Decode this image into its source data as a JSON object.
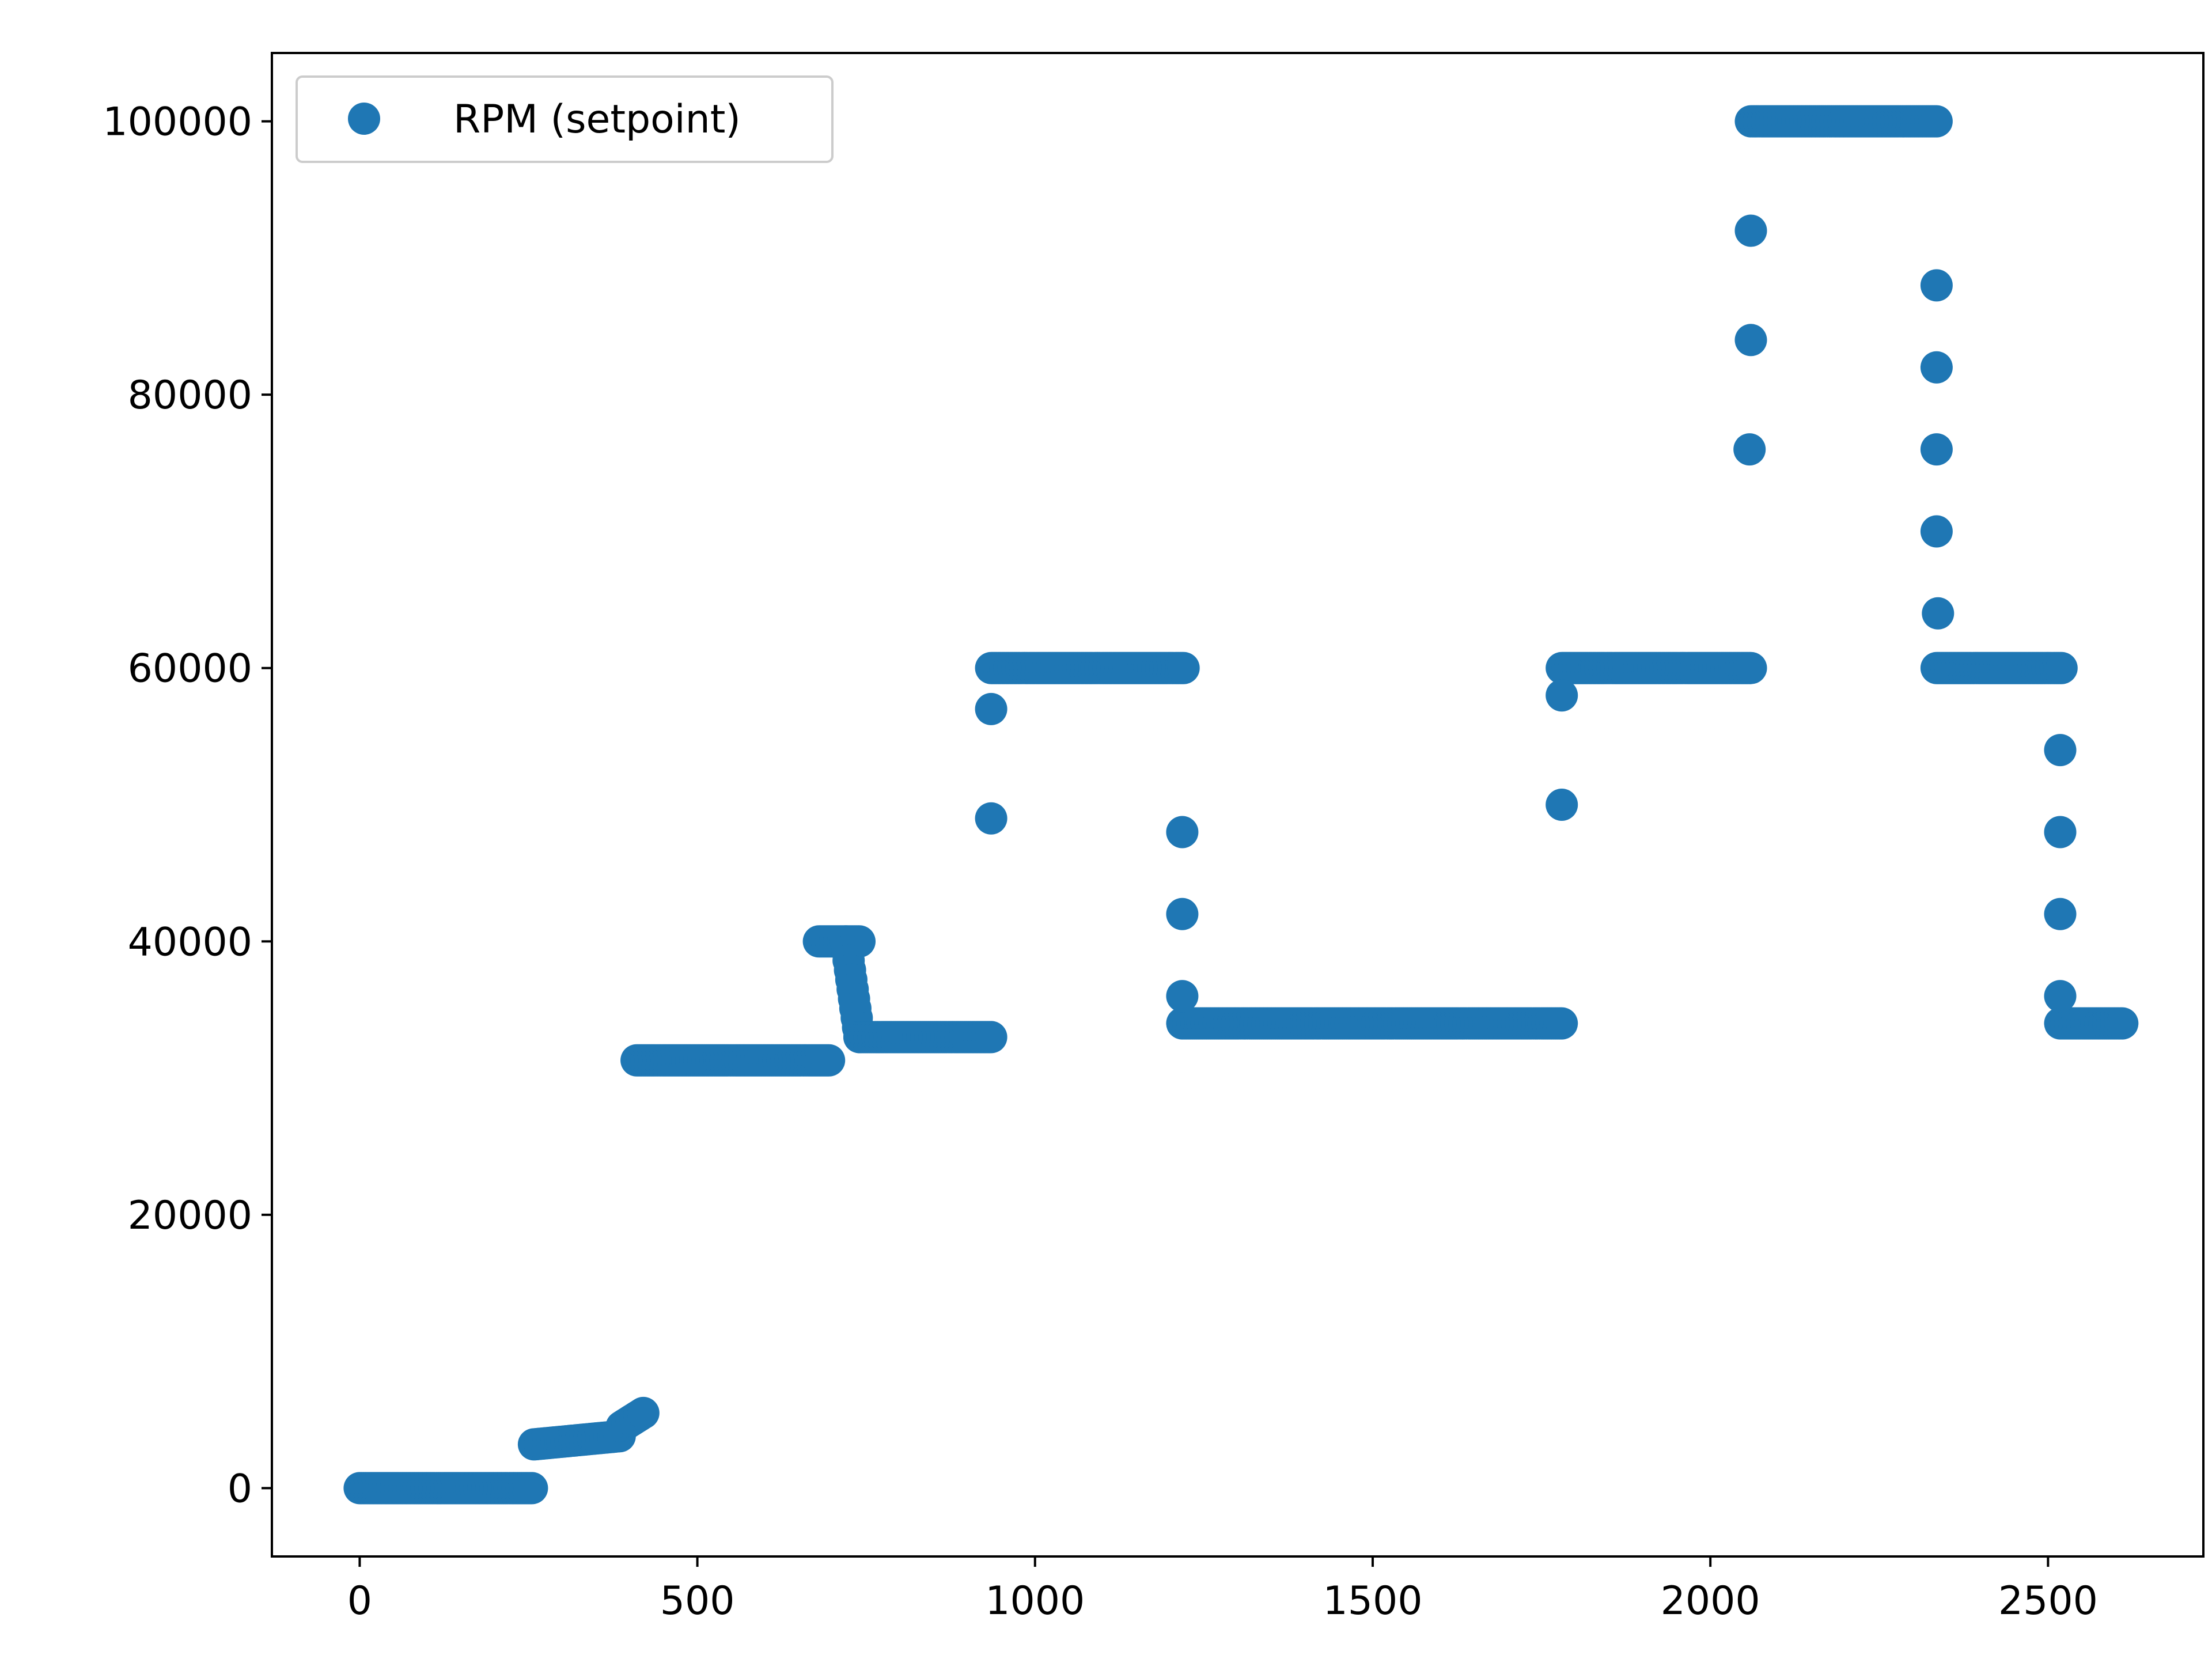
{
  "chart_data": {
    "type": "scatter",
    "title": "",
    "xlabel": "",
    "ylabel": "",
    "xlim": [
      -130,
      2730
    ],
    "ylim": [
      -5000,
      105000
    ],
    "xticks": [
      0,
      500,
      1000,
      1500,
      2000,
      2500
    ],
    "yticks": [
      0,
      20000,
      40000,
      60000,
      80000,
      100000
    ],
    "grid": false,
    "legend_position": "upper-left",
    "series": [
      {
        "name": "RPM (setpoint)",
        "color": "#1f77b4",
        "marker": "circle",
        "segments": [
          {
            "x0": 0,
            "x1": 255,
            "y0": 0,
            "y1": 0,
            "step": 3
          },
          {
            "x0": 258,
            "x1": 385,
            "y0": 3200,
            "y1": 3800,
            "step": 3
          },
          {
            "x0": 388,
            "x1": 420,
            "y0": 4500,
            "y1": 5500,
            "step": 3
          },
          {
            "x0": 410,
            "x1": 695,
            "y0": 31300,
            "y1": 31300,
            "step": 3
          },
          {
            "x0": 680,
            "x1": 740,
            "y0": 40000,
            "y1": 40000,
            "step": 3
          },
          {
            "x0": 720,
            "x1": 740,
            "y0": 40000,
            "y1": 33000,
            "step": 2
          },
          {
            "x0": 740,
            "x1": 935,
            "y0": 33000,
            "y1": 33000,
            "step": 3
          },
          {
            "x0": 935,
            "x1": 1220,
            "y0": 60000,
            "y1": 60000,
            "step": 3
          },
          {
            "x0": 1218,
            "x1": 1780,
            "y0": 34000,
            "y1": 34000,
            "step": 3
          },
          {
            "x0": 1780,
            "x1": 2060,
            "y0": 60000,
            "y1": 60000,
            "step": 3
          },
          {
            "x0": 2060,
            "x1": 2335,
            "y0": 100000,
            "y1": 100000,
            "step": 3
          },
          {
            "x0": 2335,
            "x1": 2520,
            "y0": 60000,
            "y1": 60000,
            "step": 3
          },
          {
            "x0": 2518,
            "x1": 2610,
            "y0": 34000,
            "y1": 34000,
            "step": 3
          }
        ],
        "points": [
          [
            935,
            57000
          ],
          [
            935,
            49000
          ],
          [
            1218,
            48000
          ],
          [
            1218,
            42000
          ],
          [
            1218,
            36000
          ],
          [
            1780,
            58000
          ],
          [
            1780,
            50000
          ],
          [
            2060,
            92000
          ],
          [
            2060,
            84000
          ],
          [
            2058,
            76000
          ],
          [
            2335,
            88000
          ],
          [
            2335,
            82000
          ],
          [
            2335,
            76000
          ],
          [
            2335,
            70000
          ],
          [
            2337,
            64000
          ],
          [
            2518,
            54000
          ],
          [
            2518,
            48000
          ],
          [
            2518,
            42000
          ],
          [
            2518,
            36000
          ]
        ]
      }
    ]
  }
}
